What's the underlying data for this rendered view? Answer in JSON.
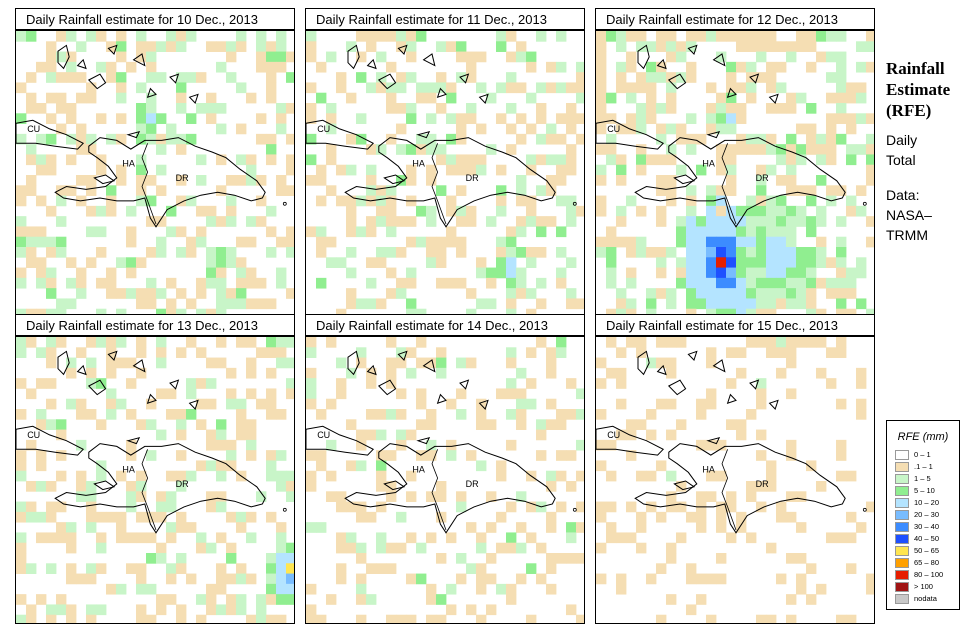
{
  "panels": [
    {
      "title": "Daily Rainfall estimate for  10 Dec., 2013",
      "seed": 11,
      "density": 0.42,
      "lightGreen": 0.35,
      "green": 0.08,
      "blobs": [
        [
          0.48,
          0.3,
          0.08,
          "b1"
        ]
      ]
    },
    {
      "title": "Daily Rainfall estimate for  11 Dec., 2013",
      "seed": 23,
      "density": 0.4,
      "lightGreen": 0.35,
      "green": 0.06,
      "blobs": [
        [
          0.73,
          0.82,
          0.1,
          "b1"
        ],
        [
          0.32,
          0.52,
          0.04,
          "b1"
        ]
      ]
    },
    {
      "title": "Daily Rainfall estimate for  12 Dec., 2013",
      "seed": 37,
      "density": 0.5,
      "lightGreen": 0.35,
      "green": 0.06,
      "blobs": [
        [
          0.45,
          0.8,
          0.22,
          "storm"
        ],
        [
          0.65,
          0.78,
          0.2,
          "b1"
        ],
        [
          0.48,
          0.32,
          0.05,
          "b1"
        ]
      ]
    },
    {
      "title": "Daily Rainfall estimate for  13 Dec., 2013",
      "seed": 53,
      "density": 0.36,
      "lightGreen": 0.3,
      "green": 0.05,
      "blobs": [
        [
          0.98,
          0.82,
          0.12,
          "edge"
        ]
      ]
    },
    {
      "title": "Daily Rainfall estimate for  14 Dec., 2013",
      "seed": 71,
      "density": 0.32,
      "lightGreen": 0.25,
      "green": 0.04,
      "blobs": []
    },
    {
      "title": "Daily Rainfall estimate for  15 Dec., 2013",
      "seed": 97,
      "density": 0.22,
      "lightGreen": 0.05,
      "green": 0.0,
      "blobs": []
    }
  ],
  "map_labels": {
    "cuba": "CU",
    "haiti": "HA",
    "dominican": "DR"
  },
  "side": {
    "title_lines": [
      "Rainfall",
      "Estimate",
      "(RFE)"
    ],
    "text_lines_1": [
      "Daily",
      "Total"
    ],
    "text_lines_2": [
      "Data:",
      "NASA–",
      "TRMM"
    ]
  },
  "legend": {
    "title": "RFE (mm)",
    "items": [
      {
        "label": "0 – 1",
        "color": "#ffffff"
      },
      {
        "label": ".1 – 1",
        "color": "#f5deb3"
      },
      {
        "label": "1 – 5",
        "color": "#c8f5c8"
      },
      {
        "label": "5 – 10",
        "color": "#90ee90"
      },
      {
        "label": "10 – 20",
        "color": "#b4e4ff"
      },
      {
        "label": "20 – 30",
        "color": "#78bcff"
      },
      {
        "label": "30 – 40",
        "color": "#3c8cff"
      },
      {
        "label": "40 – 50",
        "color": "#1e50ff"
      },
      {
        "label": "50 – 65",
        "color": "#ffe650"
      },
      {
        "label": "65 – 80",
        "color": "#ffa000"
      },
      {
        "label": "80 – 100",
        "color": "#e61e00"
      },
      {
        "label": "> 100",
        "color": "#a01414"
      },
      {
        "label": "nodata",
        "color": "#c8c8c8"
      }
    ]
  }
}
